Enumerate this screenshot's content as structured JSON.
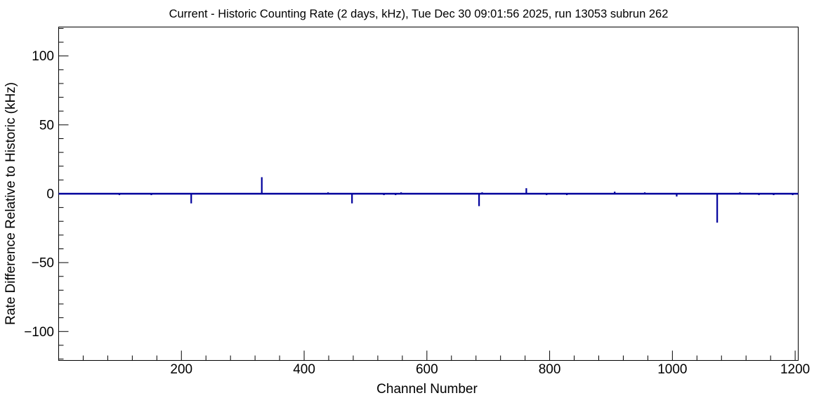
{
  "chart_data": {
    "type": "line",
    "title": "Current - Historic Counting Rate (2 days, kHz), Tue Dec 30 09:01:56 2025, run 13053 subrun 262",
    "xlabel": "Channel Number",
    "ylabel": "Rate Difference Relative to Historic (kHz)",
    "xlim": [
      0,
      1205
    ],
    "ylim": [
      -121,
      121
    ],
    "x_major_ticks": [
      200,
      400,
      600,
      800,
      1000,
      1200
    ],
    "x_major_step": 200,
    "x_minor_step": 40,
    "y_major_ticks": [
      -100,
      -50,
      0,
      50,
      100
    ],
    "y_major_step": 50,
    "y_minor_step": 10,
    "grid": false,
    "legend": "none",
    "background_color": "#ffffff",
    "frame_color": "#000000",
    "text_color": "#000000",
    "line_color": "#00009c",
    "baseline_value": 0,
    "spikes": [
      [
        99,
        -1
      ],
      [
        151,
        -1
      ],
      [
        216,
        -7
      ],
      [
        331,
        12
      ],
      [
        439,
        1
      ],
      [
        478,
        -7
      ],
      [
        530,
        -1
      ],
      [
        549,
        -1
      ],
      [
        558,
        1
      ],
      [
        685,
        -9
      ],
      [
        690,
        1
      ],
      [
        762,
        4
      ],
      [
        795,
        -1
      ],
      [
        828,
        -1
      ],
      [
        906,
        1.5
      ],
      [
        955,
        1
      ],
      [
        1007,
        -2
      ],
      [
        1073,
        -21
      ],
      [
        1110,
        1
      ],
      [
        1141,
        -1
      ],
      [
        1165,
        -1
      ],
      [
        1196,
        -1
      ]
    ]
  }
}
